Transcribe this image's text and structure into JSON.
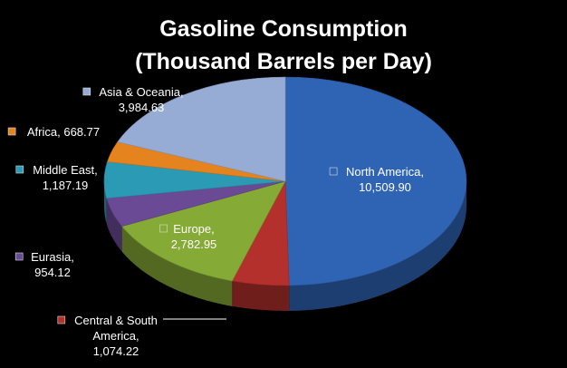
{
  "chart_data": {
    "type": "pie",
    "title_lines": [
      "Gasoline Consumption",
      "(Thousand Barrels per Day)"
    ],
    "slices": [
      {
        "name": "North America",
        "value": 10509.9,
        "value_label": "10,509.90",
        "color": "#2f64b4"
      },
      {
        "name": "Central & South America",
        "value": 1074.22,
        "value_label": "1,074.22",
        "color": "#b3302c"
      },
      {
        "name": "Europe",
        "value": 2782.95,
        "value_label": "2,782.95",
        "color": "#86aa36"
      },
      {
        "name": "Eurasia",
        "value": 954.12,
        "value_label": "954.12",
        "color": "#6a4a94"
      },
      {
        "name": "Middle East",
        "value": 1187.19,
        "value_label": "1,187.19",
        "color": "#2b9ab4"
      },
      {
        "name": "Africa",
        "value": 668.77,
        "value_label": "668.77",
        "color": "#e5831f"
      },
      {
        "name": "Asia & Oceania",
        "value": 3984.63,
        "value_label": "3,984.63",
        "color": "#97acd5"
      }
    ],
    "legend": "none",
    "data_labels": "name-and-value"
  }
}
